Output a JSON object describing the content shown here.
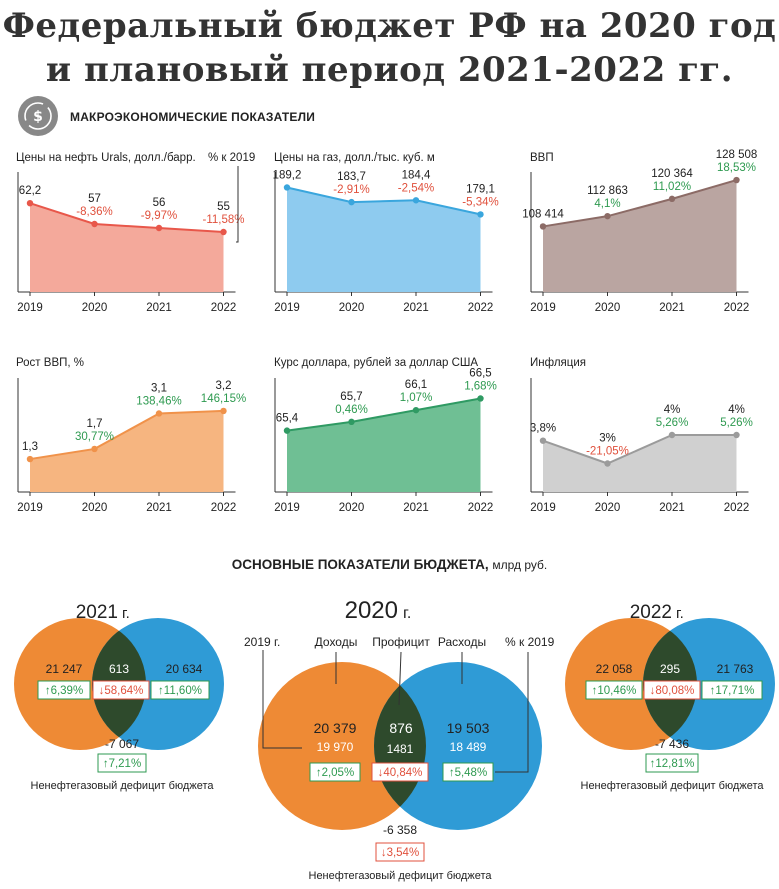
{
  "header": {
    "title_line1": "Федеральный бюджет РФ на 2020 год",
    "title_line2": "и плановый период 2021-2022 гг."
  },
  "section": {
    "macro_title": "МАКРОЭКОНОМИЧЕСКИЕ ПОКАЗАТЕЛИ",
    "budget_title": "ОСНОВНЫЕ ПОКАЗАТЕЛИ БЮДЖЕТА,",
    "budget_unit": "млрд руб."
  },
  "colors": {
    "oil": "#e8574a",
    "gas": "#3aa6dd",
    "gdp": "#8c6b66",
    "growth": "#f0924a",
    "usd": "#2f9a63",
    "infl": "#9b9b9b",
    "up": "#2e9a50",
    "down": "#e0503c",
    "orange": "#ee8a35",
    "blue": "#2f9bd6",
    "overlap": "#2e4a2c"
  },
  "chart_data": [
    {
      "type": "area",
      "title": "Цены на нефть Urals, долл./барр.",
      "side_label": "% к 2019",
      "x": [
        "2019",
        "2020",
        "2021",
        "2022"
      ],
      "values": [
        62.2,
        57,
        56,
        55
      ],
      "value_labels": [
        "62,2",
        "57",
        "56",
        "55"
      ],
      "pct_labels": [
        "",
        "-8,36%",
        "-9,97%",
        "-11,58%"
      ],
      "pct_dir": [
        "",
        "down",
        "down",
        "down"
      ],
      "ylim": [
        40,
        70
      ],
      "color": "#e8574a",
      "fill": "#f4a99b"
    },
    {
      "type": "area",
      "title": "Цены на газ, долл./тыс. куб. м",
      "x": [
        "2019",
        "2020",
        "2021",
        "2022"
      ],
      "values": [
        189.2,
        183.7,
        184.4,
        179.1
      ],
      "value_labels": [
        "189,2",
        "183,7",
        "184,4",
        "179,1"
      ],
      "pct_labels": [
        "",
        "-2,91%",
        "-2,54%",
        "-5,34%"
      ],
      "pct_dir": [
        "",
        "down",
        "down",
        "down"
      ],
      "ylim": [
        150,
        195
      ],
      "color": "#3aa6dd",
      "fill": "#8ecbef"
    },
    {
      "type": "area",
      "title": "ВВП",
      "x": [
        "2019",
        "2020",
        "2021",
        "2022"
      ],
      "values": [
        108414,
        112863,
        120364,
        128508
      ],
      "value_labels": [
        "108 414",
        "112 863",
        "120 364",
        "128 508"
      ],
      "pct_labels": [
        "",
        "4,1%",
        "11,02%",
        "18,53%"
      ],
      "pct_dir": [
        "",
        "up",
        "up",
        "up"
      ],
      "ylim": [
        80000,
        132000
      ],
      "color": "#8c6b66",
      "fill": "#baa5a1"
    },
    {
      "type": "area",
      "title": "Рост ВВП, %",
      "x": [
        "2019",
        "2020",
        "2021",
        "2022"
      ],
      "values": [
        1.3,
        1.7,
        3.1,
        3.2
      ],
      "value_labels": [
        "1,3",
        "1,7",
        "3,1",
        "3,2"
      ],
      "pct_labels": [
        "",
        "30,77%",
        "138,46%",
        "146,15%"
      ],
      "pct_dir": [
        "",
        "up",
        "up",
        "up"
      ],
      "ylim": [
        0,
        4.5
      ],
      "color": "#f0924a",
      "fill": "#f6b580"
    },
    {
      "type": "area",
      "title": "Курс доллара, рублей за доллар США",
      "x": [
        "2019",
        "2020",
        "2021",
        "2022"
      ],
      "values": [
        65.4,
        65.7,
        66.1,
        66.5
      ],
      "value_labels": [
        "65,4",
        "65,7",
        "66,1",
        "66,5"
      ],
      "pct_labels": [
        "",
        "0,46%",
        "1,07%",
        "1,68%"
      ],
      "pct_dir": [
        "",
        "up",
        "up",
        "up"
      ],
      "ylim": [
        63.3,
        67.2
      ],
      "color": "#2f9a63",
      "fill": "#6fbf94"
    },
    {
      "type": "area",
      "title": "Инфляция",
      "x": [
        "2019",
        "2020",
        "2021",
        "2022"
      ],
      "values": [
        3.8,
        3,
        4,
        4
      ],
      "value_labels": [
        "3,8%",
        "3%",
        "4%",
        "4%"
      ],
      "pct_labels": [
        "",
        "-21,05%",
        "5,26%",
        "5,26%"
      ],
      "pct_dir": [
        "",
        "down",
        "up",
        "up"
      ],
      "ylim": [
        2,
        6
      ],
      "color": "#9b9b9b",
      "fill": "#d0d0d0"
    }
  ],
  "budget": {
    "y2020": {
      "year": "2020",
      "year_suffix": "г.",
      "col_2019": "2019 г.",
      "col_income": "Доходы",
      "col_surplus": "Профицит",
      "col_expense": "Расходы",
      "col_pct": "% к 2019",
      "income": "20 379",
      "income_2019": "19 970",
      "income_pct": "↑2,05%",
      "surplus": "876",
      "surplus_2019": "1481",
      "surplus_pct": "↓40,84%",
      "expense": "19 503",
      "expense_2019": "18 489",
      "expense_pct": "↑5,48%",
      "deficit": "-6 358",
      "deficit_pct": "↓3,54%",
      "deficit_label": "Ненефтегазовый дефицит бюджета"
    },
    "y2021": {
      "year": "2021",
      "year_suffix": "г.",
      "income": "21 247",
      "income_pct": "↑6,39%",
      "surplus": "613",
      "surplus_pct": "↓58,64%",
      "expense": "20 634",
      "expense_pct": "↑11,60%",
      "deficit": "-7 067",
      "deficit_pct": "↑7,21%",
      "deficit_label": "Ненефтегазовый дефицит бюджета"
    },
    "y2022": {
      "year": "2022",
      "year_suffix": "г.",
      "income": "22 058",
      "income_pct": "↑10,46%",
      "surplus": "295",
      "surplus_pct": "↓80,08%",
      "expense": "21 763",
      "expense_pct": "↑17,71%",
      "deficit": "-7 436",
      "deficit_pct": "↑12,81%",
      "deficit_label": "Ненефтегазовый дефицит бюджета"
    }
  }
}
